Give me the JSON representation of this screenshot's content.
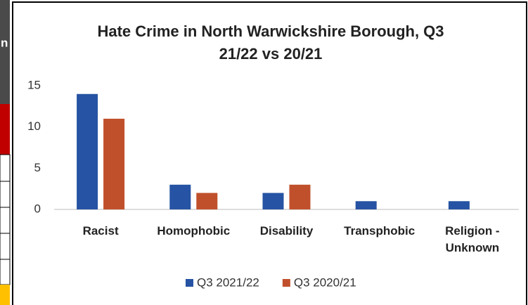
{
  "side_table": {
    "fragment": "n"
  },
  "chart_data": {
    "type": "bar",
    "title": [
      "Hate Crime in North Warwickshire Borough, Q3",
      "21/22 vs 20/21"
    ],
    "categories": [
      "Racist",
      "Homophobic",
      "Disability",
      "Transphobic",
      "Religion - Unknown"
    ],
    "series": [
      {
        "name": "Q3 2021/22",
        "color": "#2653a3",
        "values": [
          14,
          3,
          2,
          1,
          1
        ]
      },
      {
        "name": "Q3 2020/21",
        "color": "#c0502b",
        "values": [
          11,
          2,
          3,
          0,
          0
        ]
      }
    ],
    "ylim": [
      0,
      15
    ],
    "yticks": [
      0,
      5,
      10,
      15
    ],
    "grid": false,
    "legend": "bottom"
  }
}
